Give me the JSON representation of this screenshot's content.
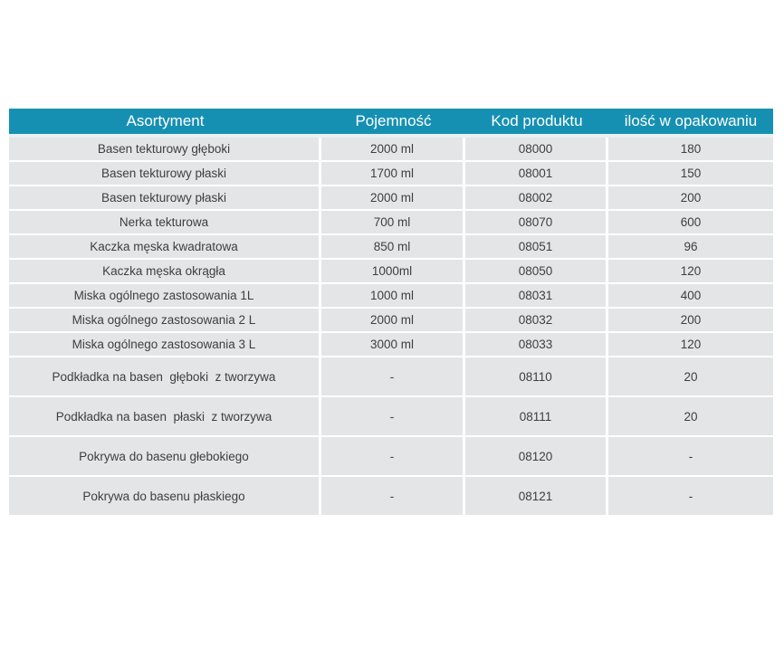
{
  "colors": {
    "header_bg": "#1690B2",
    "header_text": "#FFFFFF",
    "row_bg": "#E4E5E7",
    "row_text": "#3E3E40",
    "header_underline": "#E7F1F4",
    "page_bg": "#FFFFFF"
  },
  "table": {
    "headers": [
      "Asortyment",
      "Pojemność",
      "Kod produktu",
      "ilość w opakowaniu"
    ],
    "rows": [
      [
        "Basen tekturowy głęboki",
        "2000 ml",
        "08000",
        "180"
      ],
      [
        "Basen tekturowy płaski",
        "1700 ml",
        "08001",
        "150"
      ],
      [
        "Basen tekturowy płaski",
        "2000 ml",
        "08002",
        "200"
      ],
      [
        "Nerka tekturowa",
        "700 ml",
        "08070",
        "600"
      ],
      [
        "Kaczka męska kwadratowa",
        "850 ml",
        "08051",
        "96"
      ],
      [
        "Kaczka męska okrągła",
        "1000ml",
        "08050",
        "120"
      ],
      [
        "Miska ogólnego zastosowania 1L",
        "1000 ml",
        "08031",
        "400"
      ],
      [
        "Miska ogólnego zastosowania 2 L",
        "2000 ml",
        "08032",
        "200"
      ],
      [
        "Miska ogólnego zastosowania 3 L",
        "3000 ml",
        "08033",
        "120"
      ],
      [
        "Podkładka na basen  głęboki  z tworzywa",
        "-",
        "08110",
        "20"
      ],
      [
        "Podkładka na basen  płaski  z tworzywa",
        "-",
        "08111",
        "20"
      ],
      [
        "Pokrywa do basenu głebokiego",
        "-",
        "08120",
        "-"
      ],
      [
        "Pokrywa do basenu płaskiego",
        "-",
        "08121",
        "-"
      ]
    ]
  }
}
